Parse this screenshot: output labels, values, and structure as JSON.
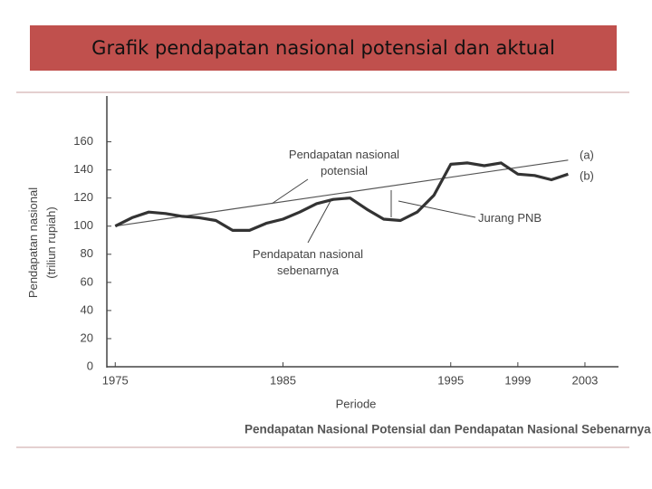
{
  "title": "Grafik pendapatan nasional potensial dan aktual",
  "chart_data": {
    "type": "line",
    "caption": "Pendapatan Nasional Potensial dan Pendapatan Nasional Sebenarnya",
    "x_label": "Periode",
    "y_label": [
      "Pendapatan nasional",
      "(triliun rupiah)"
    ],
    "xlim": [
      1974.5,
      2005
    ],
    "xticks": [
      1975,
      1985,
      1995,
      1999,
      2003
    ],
    "ylim": [
      0,
      190
    ],
    "yticks": [
      0,
      20,
      40,
      60,
      80,
      100,
      120,
      140,
      160
    ],
    "grid": false,
    "series": [
      {
        "name": "(a)",
        "color": "#555555",
        "width": 1.2,
        "x": [
          1975,
          2002
        ],
        "values": [
          100,
          147
        ]
      },
      {
        "name": "(b)",
        "color": "#333333",
        "width": 3.2,
        "x": [
          1975,
          1976,
          1977,
          1978,
          1979,
          1980,
          1981,
          1982,
          1983,
          1984,
          1985,
          1986,
          1987,
          1988,
          1989,
          1990,
          1991,
          1992,
          1993,
          1994,
          1995,
          1996,
          1997,
          1998,
          1999,
          2000,
          2001,
          2002
        ],
        "values": [
          100,
          106,
          110,
          109,
          107,
          106,
          104,
          97,
          97,
          102,
          105,
          110,
          116,
          119,
          120,
          112,
          105,
          104,
          110,
          122,
          144,
          145,
          143,
          145,
          137,
          136,
          133,
          137
        ]
      }
    ],
    "annotations": [
      {
        "lines": [
          "Pendapatan nasional",
          "potensial"
        ]
      },
      {
        "lines": [
          "Pendapatan nasional",
          "sebenarnya"
        ]
      },
      {
        "lines": [
          "Jurang PNB"
        ]
      }
    ]
  }
}
